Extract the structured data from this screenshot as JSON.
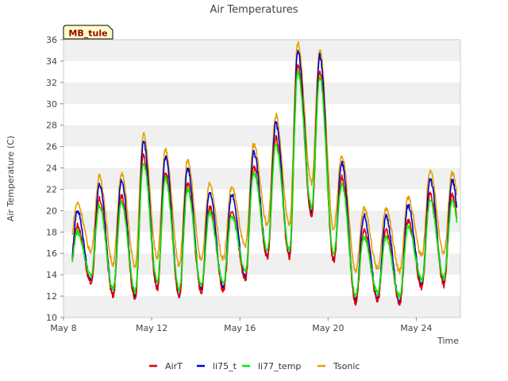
{
  "chart_data": {
    "type": "line",
    "title": "Air Temperatures",
    "station_label": "MB_tule",
    "xlabel": "Time",
    "ylabel": "Air Temperature (C)",
    "xlim": [
      "2024-05-08",
      "2024-05-26"
    ],
    "ylim": [
      10,
      36
    ],
    "y_ticks": [
      10,
      12,
      14,
      16,
      18,
      20,
      22,
      24,
      26,
      28,
      30,
      32,
      34,
      36
    ],
    "x_ticks": [
      {
        "label": "May 8",
        "date": "2024-05-08"
      },
      {
        "label": "May 12",
        "date": "2024-05-12"
      },
      {
        "label": "May 16",
        "date": "2024-05-16"
      },
      {
        "label": "May 20",
        "date": "2024-05-20"
      },
      {
        "label": "May 24",
        "date": "2024-05-24"
      }
    ],
    "grid": "horizontal alternating bands",
    "legend_position": "bottom",
    "daily": [
      {
        "date": "2024-05-08",
        "min": 13.3,
        "max": 20.0
      },
      {
        "date": "2024-05-09",
        "min": 13.4,
        "max": 22.5
      },
      {
        "date": "2024-05-10",
        "min": 12.2,
        "max": 22.8
      },
      {
        "date": "2024-05-11",
        "min": 11.9,
        "max": 26.5
      },
      {
        "date": "2024-05-12",
        "min": 12.8,
        "max": 25.0
      },
      {
        "date": "2024-05-13",
        "min": 12.1,
        "max": 24.0
      },
      {
        "date": "2024-05-14",
        "min": 12.6,
        "max": 21.8
      },
      {
        "date": "2024-05-15",
        "min": 12.7,
        "max": 21.5
      },
      {
        "date": "2024-05-16",
        "min": 13.8,
        "max": 25.5
      },
      {
        "date": "2024-05-17",
        "min": 15.8,
        "max": 28.2
      },
      {
        "date": "2024-05-18",
        "min": 15.8,
        "max": 35.0
      },
      {
        "date": "2024-05-19",
        "min": 19.8,
        "max": 34.5
      },
      {
        "date": "2024-05-20",
        "min": 15.5,
        "max": 24.5
      },
      {
        "date": "2024-05-21",
        "min": 11.6,
        "max": 19.5
      },
      {
        "date": "2024-05-22",
        "min": 11.8,
        "max": 19.5
      },
      {
        "date": "2024-05-23",
        "min": 11.5,
        "max": 20.5
      },
      {
        "date": "2024-05-24",
        "min": 13.0,
        "max": 23.0
      },
      {
        "date": "2024-05-25",
        "min": 13.2,
        "max": 22.8
      }
    ],
    "series": [
      {
        "name": "AirT",
        "color": "#dd0000",
        "max_offset": -1.4,
        "min_offset": -0.2
      },
      {
        "name": "li75_t",
        "color": "#0000cc",
        "max_offset": 0.0,
        "min_offset": 0.0
      },
      {
        "name": "li77_temp",
        "color": "#00ee00",
        "max_offset": -2.0,
        "min_offset": 0.5
      },
      {
        "name": "Tsonic",
        "color": "#e69f00",
        "max_offset": 0.7,
        "min_offset": 2.8
      }
    ]
  }
}
